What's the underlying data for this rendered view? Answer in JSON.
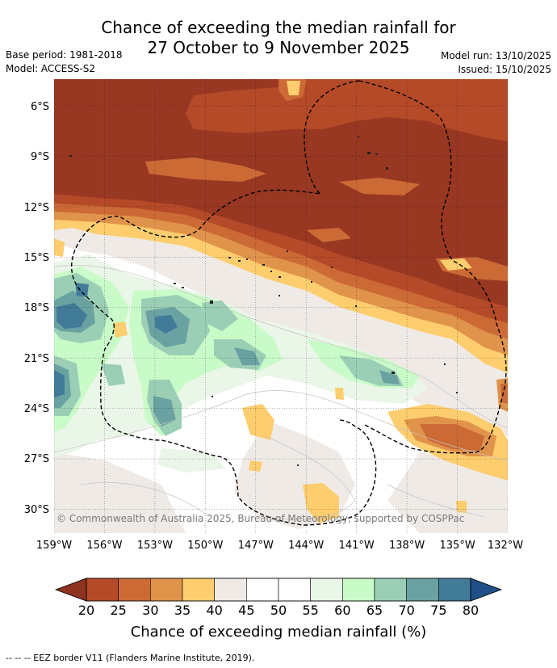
{
  "title": {
    "line1": "Chance of exceeding the median rainfall for",
    "line2": "27 October to 9 November 2025"
  },
  "meta": {
    "base_period": "Base period: 1981-2018",
    "model": "Model: ACCESS-S2",
    "model_run": "Model run: 13/10/2025",
    "issued": "Issued: 15/10/2025"
  },
  "map": {
    "lon_range": [
      -159,
      -132
    ],
    "lat_range": [
      -31.5,
      -4.5
    ],
    "lon_ticks": [
      "159°W",
      "156°W",
      "153°W",
      "150°W",
      "147°W",
      "144°W",
      "141°W",
      "138°W",
      "135°W",
      "132°W"
    ],
    "lat_ticks": [
      "6°S",
      "9°S",
      "12°S",
      "15°S",
      "18°S",
      "21°S",
      "24°S",
      "27°S",
      "30°S"
    ],
    "grid": true,
    "copyright": "© Commonwealth of Australia 2025, Bureau of Meteorology, supported by COSPPac"
  },
  "colorbar": {
    "labels": [
      "20",
      "25",
      "30",
      "35",
      "40",
      "45",
      "50",
      "55",
      "60",
      "65",
      "70",
      "75",
      "80"
    ],
    "colors": [
      "#993822",
      "#b54a28",
      "#cc6a36",
      "#e0934a",
      "#fdcd6e",
      "#efeae6",
      "#ffffff",
      "#ffffff",
      "#eaf6e8",
      "#c9fbc8",
      "#9bcfb5",
      "#6aa2a2",
      "#417b98"
    ],
    "under_color": "#8f3220",
    "over_color": "#1f4f86",
    "title": "Chance of exceeding median rainfall (%)"
  },
  "footnote": "--  --  -- EEZ border V11 (Flanders Marine Institute, 2019)."
}
